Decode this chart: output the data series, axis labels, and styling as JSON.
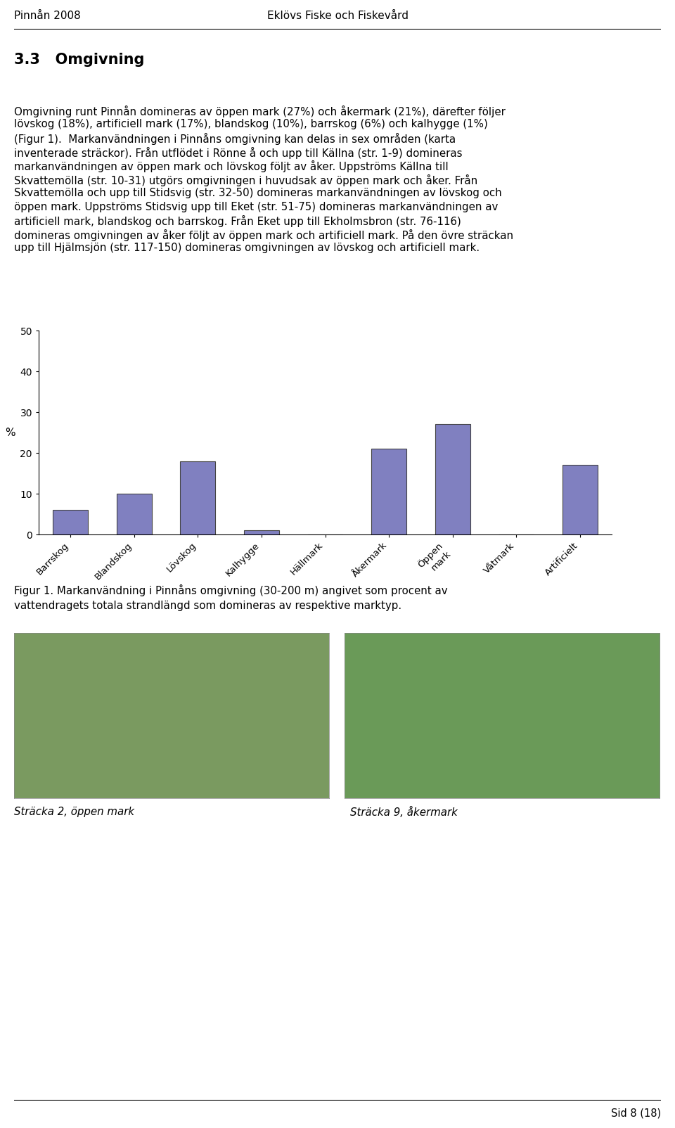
{
  "header_left": "Pinnån 2008",
  "header_center": "Eklövs Fiske och Fiskevård",
  "section_title": "3.3   Omgivning",
  "body_text_lines": [
    "Omgivning runt Pinnån domineras av öppen mark (27%) och åkermark (21%), därefter följer",
    "lövskog (18%), artificiell mark (17%), blandskog (10%), barrskog (6%) och kalhygge (1%)",
    "(Figur 1).  Markanvändningen i Pinnåns omgivning kan delas in sex områden (karta",
    "inventerade sträckor). Från utflödet i Rönne å och upp till Källna (str. 1-9) domineras",
    "markanvändningen av öppen mark och lövskog följt av åker. Uppströms Källna till",
    "Skvattemölla (str. 10-31) utgörs omgivningen i huvudsak av öppen mark och åker. Från",
    "Skvattemölla och upp till Stidsvig (str. 32-50) domineras markanvändningen av lövskog och",
    "öppen mark. Uppströms Stidsvig upp till Eket (str. 51-75) domineras markanvändningen av",
    "artificiell mark, blandskog och barrskog. Från Eket upp till Ekholmsbron (str. 76-116)",
    "domineras omgivningen av åker följt av öppen mark och artificiell mark. På den övre sträckan",
    "upp till Hjälmsjön (str. 117-150) domineras omgivningen av lövskog och artificiell mark."
  ],
  "categories": [
    "Barrskog",
    "Blandskog",
    "Lövskog",
    "Kalhygge",
    "Hällmark",
    "Åkermark",
    "Öppen\nmark",
    "Våtmark",
    "Artificielt"
  ],
  "values": [
    6,
    10,
    18,
    1,
    0,
    21,
    27,
    0,
    17
  ],
  "bar_color": "#8080c0",
  "bar_edge_color": "#444444",
  "ylabel": "%",
  "ylim": [
    0,
    50
  ],
  "yticks": [
    0,
    10,
    20,
    30,
    40,
    50
  ],
  "figure_caption_line1": "Figur 1. Markanvändning i Pinnåns omgivning (30-200 m) angivet som procent av",
  "figure_caption_line2": "vattendragets totala strandlängd som domineras av respektive marktyp.",
  "photo_caption_left": "Sträcka 2, öppen mark",
  "photo_caption_right": "Sträcka 9, åkermark",
  "footer_right": "Sid 8 (18)",
  "background_color": "#ffffff",
  "photo_left_color": "#7a9a60",
  "photo_right_color": "#6a9a58"
}
